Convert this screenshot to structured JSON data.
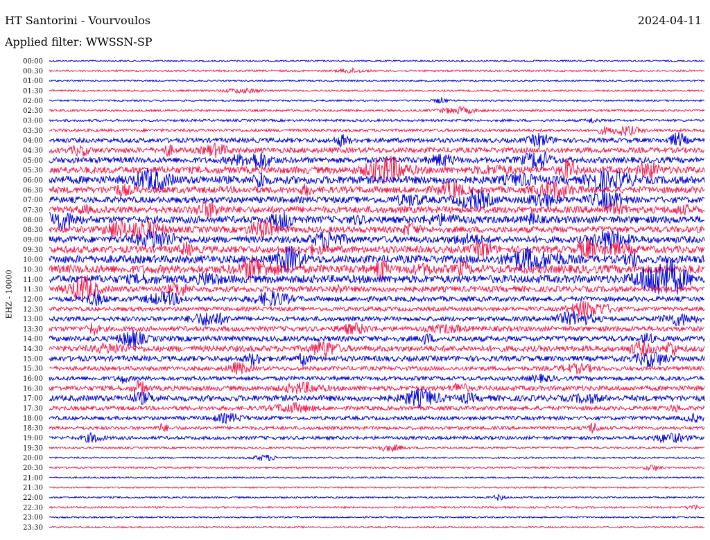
{
  "header": {
    "station": "HT Santorini - Vourvoulos",
    "date": "2024-04-11",
    "filter": "Applied filter: WWSSN-SP"
  },
  "chart_data": {
    "type": "line",
    "ylabel": "EHZ - 10000",
    "colors": [
      "#0000d6",
      "#f0194a"
    ],
    "rows": [
      {
        "time": "00:00",
        "level": 0.08
      },
      {
        "time": "00:30",
        "level": 0.12
      },
      {
        "time": "01:00",
        "level": 0.08
      },
      {
        "time": "01:30",
        "level": 0.1
      },
      {
        "time": "02:00",
        "level": 0.1
      },
      {
        "time": "02:30",
        "level": 0.15
      },
      {
        "time": "03:00",
        "level": 0.18
      },
      {
        "time": "03:30",
        "level": 0.25
      },
      {
        "time": "04:00",
        "level": 0.45
      },
      {
        "time": "04:30",
        "level": 0.55
      },
      {
        "time": "05:00",
        "level": 0.6
      },
      {
        "time": "05:30",
        "level": 0.75
      },
      {
        "time": "06:00",
        "level": 0.85
      },
      {
        "time": "06:30",
        "level": 0.7
      },
      {
        "time": "07:00",
        "level": 0.65
      },
      {
        "time": "07:30",
        "level": 0.7
      },
      {
        "time": "08:00",
        "level": 0.75
      },
      {
        "time": "08:30",
        "level": 0.65
      },
      {
        "time": "09:00",
        "level": 0.7
      },
      {
        "time": "09:30",
        "level": 0.75
      },
      {
        "time": "10:00",
        "level": 0.85
      },
      {
        "time": "10:30",
        "level": 0.9
      },
      {
        "time": "11:00",
        "level": 0.85
      },
      {
        "time": "11:30",
        "level": 0.6
      },
      {
        "time": "12:00",
        "level": 0.5
      },
      {
        "time": "12:30",
        "level": 0.4
      },
      {
        "time": "13:00",
        "level": 0.45
      },
      {
        "time": "13:30",
        "level": 0.5
      },
      {
        "time": "14:00",
        "level": 0.55
      },
      {
        "time": "14:30",
        "level": 0.6
      },
      {
        "time": "15:00",
        "level": 0.55
      },
      {
        "time": "15:30",
        "level": 0.4
      },
      {
        "time": "16:00",
        "level": 0.4
      },
      {
        "time": "16:30",
        "level": 0.5
      },
      {
        "time": "17:00",
        "level": 0.6
      },
      {
        "time": "17:30",
        "level": 0.4
      },
      {
        "time": "18:00",
        "level": 0.35
      },
      {
        "time": "18:30",
        "level": 0.3
      },
      {
        "time": "19:00",
        "level": 0.3
      },
      {
        "time": "19:30",
        "level": 0.12
      },
      {
        "time": "20:00",
        "level": 0.1
      },
      {
        "time": "20:30",
        "level": 0.1
      },
      {
        "time": "21:00",
        "level": 0.08
      },
      {
        "time": "21:30",
        "level": 0.08
      },
      {
        "time": "22:00",
        "level": 0.1
      },
      {
        "time": "22:30",
        "level": 0.12
      },
      {
        "time": "23:00",
        "level": 0.08
      },
      {
        "time": "23:30",
        "level": 0.08
      }
    ]
  }
}
